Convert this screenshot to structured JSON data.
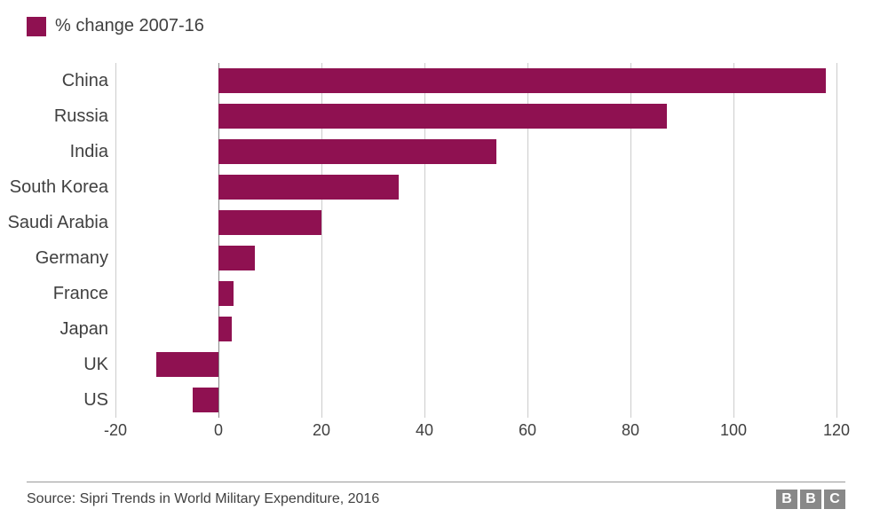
{
  "chart": {
    "type": "bar-horizontal",
    "legend_label": "% change 2007-16",
    "bar_color": "#8f1151",
    "background_color": "#ffffff",
    "grid_color": "#cccccc",
    "axis_color": "#888888",
    "text_color": "#404040",
    "label_fontsize": 20,
    "tick_fontsize": 18,
    "xlim": [
      -20,
      120
    ],
    "xtick_step": 20,
    "xticks": [
      -20,
      0,
      20,
      40,
      60,
      80,
      100,
      120
    ],
    "categories": [
      "China",
      "Russia",
      "India",
      "South Korea",
      "Saudi Arabia",
      "Germany",
      "France",
      "Japan",
      "UK",
      "US"
    ],
    "values": [
      118,
      87,
      54,
      35,
      20,
      7,
      3,
      2.5,
      -12,
      -5
    ],
    "bar_height_ratio": 0.7
  },
  "footer": {
    "source": "Source: Sipri Trends in World Military Expenditure, 2016",
    "logo_letters": [
      "B",
      "B",
      "C"
    ],
    "logo_bg": "#888888",
    "logo_fg": "#ffffff"
  }
}
